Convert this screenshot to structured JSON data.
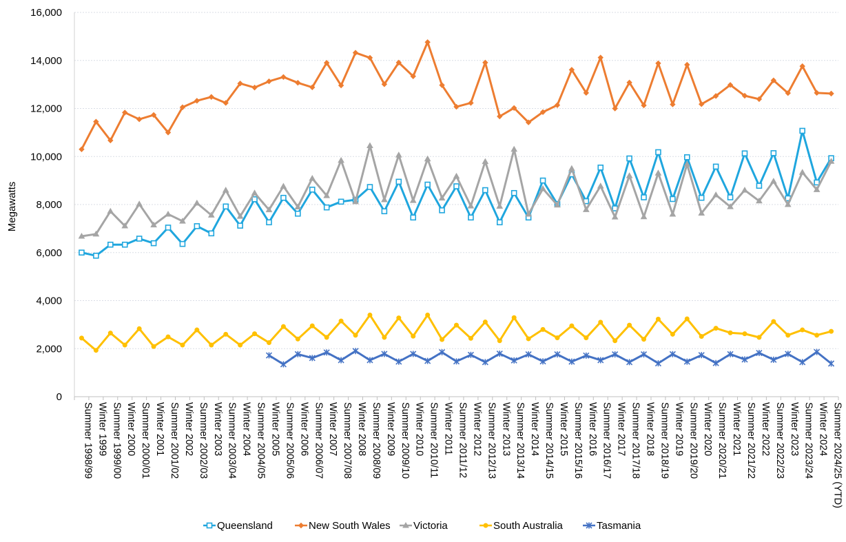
{
  "chart_data": {
    "type": "line",
    "ylabel": "Megawatts",
    "ylim": [
      0,
      16000
    ],
    "yticks": [
      "0",
      "2,000",
      "4,000",
      "6,000",
      "8,000",
      "10,000",
      "12,000",
      "14,000",
      "16,000"
    ],
    "grid": true,
    "legend_position": "bottom",
    "categories": [
      "Summer 1998/99",
      "Winter 1999",
      "Summer 1999/00",
      "Winter 2000",
      "Summer 2000/01",
      "Winter 2001",
      "Summer 2001/02",
      "Winter 2002",
      "Summer 2002/03",
      "Winter 2003",
      "Summer 2003/04",
      "Winter 2004",
      "Summer 2004/05",
      "Winter 2005",
      "Summer 2005/06",
      "Winter 2006",
      "Summer 2006/07",
      "Winter 2007",
      "Summer 2007/08",
      "Winter 2008",
      "Summer 2008/09",
      "Winter 2009",
      "Summer 2009/10",
      "Winter 2010",
      "Summer 2010/11",
      "Winter 2011",
      "Summer 2011/12",
      "Winter 2012",
      "Summer 2012/13",
      "Winter 2013",
      "Summer 2013/14",
      "Winter 2014",
      "Summer 2014/15",
      "Winter 2015",
      "Summer 2015/16",
      "Winter 2016",
      "Summer 2016/17",
      "Winter 2017",
      "Summer 2017/18",
      "Winter 2018",
      "Summer 2018/19",
      "Winter 2019",
      "Summer 2019/20",
      "Winter 2020",
      "Summer 2020/21",
      "Winter 2021",
      "Summer 2021/22",
      "Winter 2022",
      "Summer 2022/23",
      "Winter 2023",
      "Summer 2023/24",
      "Winter 2024",
      "Summer 2024/25 (YTD)"
    ],
    "series": [
      {
        "name": "Queensland",
        "color": "#1FA6DE",
        "marker": "square",
        "values": [
          6000,
          5870,
          6330,
          6330,
          6580,
          6390,
          7040,
          6360,
          7100,
          6800,
          7920,
          7120,
          8220,
          7260,
          8280,
          7620,
          8620,
          7880,
          8120,
          8200,
          8730,
          7720,
          8950,
          7460,
          8830,
          7760,
          8760,
          7460,
          8600,
          7260,
          8480,
          7460,
          9000,
          8020,
          9260,
          8140,
          9540,
          7840,
          9920,
          8300,
          10180,
          8230,
          9970,
          8280,
          9580,
          8300,
          10130,
          8780,
          10140,
          8260,
          11070,
          8920,
          9930
        ]
      },
      {
        "name": "New South Wales",
        "color": "#ED7D31",
        "marker": "diamond",
        "values": [
          10300,
          11450,
          10670,
          11830,
          11550,
          11730,
          11000,
          12050,
          12320,
          12480,
          12230,
          13040,
          12870,
          13130,
          13310,
          13070,
          12880,
          13900,
          12960,
          14320,
          14110,
          13010,
          13910,
          13340,
          14760,
          12970,
          12070,
          12230,
          13910,
          11670,
          12020,
          11420,
          11850,
          12140,
          13610,
          12650,
          14120,
          12000,
          13080,
          12130,
          13880,
          12170,
          13820,
          12180,
          12520,
          12980,
          12530,
          12390,
          13170,
          12640,
          13760,
          12650,
          12620
        ]
      },
      {
        "name": "Victoria",
        "color": "#A5A5A5",
        "marker": "triangle",
        "values": [
          6680,
          6770,
          7720,
          7110,
          8020,
          7150,
          7600,
          7310,
          8060,
          7560,
          8600,
          7510,
          8480,
          7780,
          8760,
          7900,
          9090,
          8370,
          9840,
          8120,
          10450,
          8200,
          10060,
          8170,
          9900,
          8270,
          9180,
          7940,
          9790,
          7930,
          10300,
          7600,
          8660,
          7980,
          9500,
          7790,
          8770,
          7480,
          9200,
          7490,
          9310,
          7600,
          9680,
          7640,
          8400,
          7910,
          8600,
          8150,
          8970,
          8000,
          9340,
          8620,
          9800
        ]
      },
      {
        "name": "South Australia",
        "color": "#FFC000",
        "marker": "circle",
        "values": [
          2440,
          1930,
          2650,
          2150,
          2830,
          2090,
          2490,
          2150,
          2780,
          2150,
          2600,
          2150,
          2620,
          2250,
          2920,
          2400,
          2950,
          2470,
          3150,
          2560,
          3400,
          2470,
          3280,
          2520,
          3400,
          2380,
          2980,
          2430,
          3110,
          2330,
          3290,
          2410,
          2800,
          2450,
          2950,
          2450,
          3100,
          2330,
          2980,
          2390,
          3230,
          2600,
          3240,
          2510,
          2850,
          2660,
          2620,
          2470,
          3130,
          2560,
          2780,
          2560,
          2720
        ]
      },
      {
        "name": "Tasmania",
        "color": "#4472C4",
        "marker": "star",
        "values": [
          null,
          null,
          null,
          null,
          null,
          null,
          null,
          null,
          null,
          null,
          null,
          null,
          null,
          1720,
          1350,
          1770,
          1610,
          1840,
          1520,
          1900,
          1520,
          1780,
          1460,
          1780,
          1490,
          1850,
          1470,
          1740,
          1440,
          1790,
          1510,
          1760,
          1470,
          1760,
          1460,
          1710,
          1520,
          1760,
          1440,
          1760,
          1390,
          1770,
          1460,
          1730,
          1400,
          1770,
          1550,
          1820,
          1540,
          1780,
          1440,
          1860,
          1380
        ]
      }
    ]
  }
}
